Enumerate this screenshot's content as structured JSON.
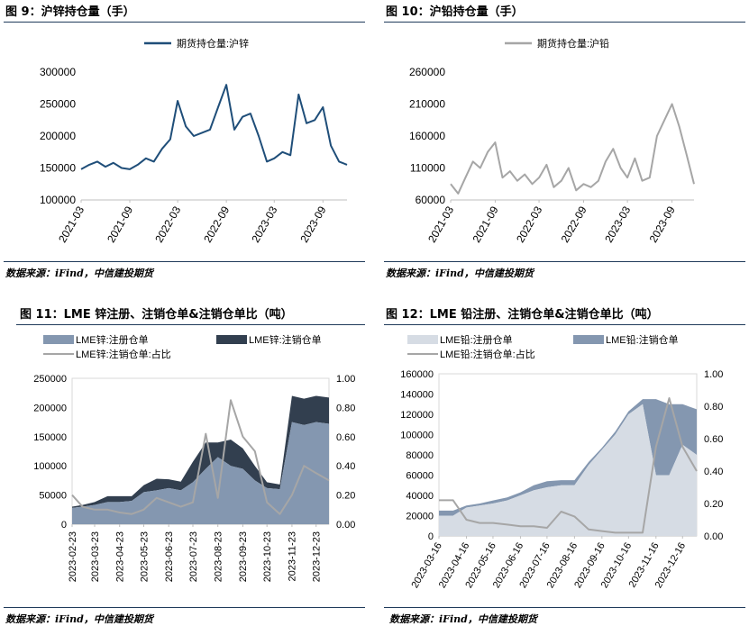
{
  "sources": {
    "top_left": "数据来源：iFind，中信建投期货",
    "top_right": "数据来源：iFind，中信建投期货",
    "bottom_left": "数据来源：iFind，中信建投期货",
    "bottom_right": "数据来源：iFind，中信建投期货"
  },
  "chart_data": [
    {
      "id": "fig9",
      "type": "line",
      "title": "图 9：沪锌持仓量（手）",
      "xlabel": "",
      "ylabel": "",
      "ylim": [
        100000,
        300000
      ],
      "yticks": [
        "100000",
        "150000",
        "200000",
        "250000",
        "300000"
      ],
      "xticks": [
        "2021-03",
        "2021-09",
        "2022-03",
        "2022-09",
        "2023-03",
        "2023-09"
      ],
      "grid": false,
      "legend": "top",
      "series": [
        {
          "name": "期货持仓量:沪锌",
          "color": "#1f4e79",
          "x": [
            "2021-03",
            "2021-04",
            "2021-05",
            "2021-06",
            "2021-07",
            "2021-08",
            "2021-09",
            "2021-10",
            "2021-11",
            "2021-12",
            "2022-01",
            "2022-02",
            "2022-03",
            "2022-04",
            "2022-05",
            "2022-06",
            "2022-07",
            "2022-08",
            "2022-09",
            "2022-10",
            "2022-11",
            "2022-12",
            "2023-01",
            "2023-02",
            "2023-03",
            "2023-04",
            "2023-05",
            "2023-06",
            "2023-07",
            "2023-08",
            "2023-09",
            "2023-10",
            "2023-11",
            "2023-12"
          ],
          "values": [
            148000,
            155000,
            160000,
            152000,
            158000,
            150000,
            148000,
            155000,
            165000,
            160000,
            180000,
            195000,
            255000,
            215000,
            200000,
            205000,
            210000,
            245000,
            280000,
            210000,
            230000,
            235000,
            200000,
            160000,
            165000,
            175000,
            170000,
            265000,
            220000,
            225000,
            245000,
            185000,
            160000,
            155000
          ]
        }
      ]
    },
    {
      "id": "fig10",
      "type": "line",
      "title": "图 10：沪铅持仓量（手）",
      "xlabel": "",
      "ylabel": "",
      "ylim": [
        60000,
        260000
      ],
      "yticks": [
        "60000",
        "110000",
        "160000",
        "210000",
        "260000"
      ],
      "xticks": [
        "2021-03",
        "2021-09",
        "2022-03",
        "2022-09",
        "2023-03",
        "2023-09"
      ],
      "grid": false,
      "legend": "top",
      "series": [
        {
          "name": "期货持仓量:沪铅",
          "color": "#a6a6a6",
          "x": [
            "2021-03",
            "2021-04",
            "2021-05",
            "2021-06",
            "2021-07",
            "2021-08",
            "2021-09",
            "2021-10",
            "2021-11",
            "2021-12",
            "2022-01",
            "2022-02",
            "2022-03",
            "2022-04",
            "2022-05",
            "2022-06",
            "2022-07",
            "2022-08",
            "2022-09",
            "2022-10",
            "2022-11",
            "2022-12",
            "2023-01",
            "2023-02",
            "2023-03",
            "2023-04",
            "2023-05",
            "2023-06",
            "2023-07",
            "2023-08",
            "2023-09",
            "2023-10",
            "2023-11",
            "2023-12"
          ],
          "values": [
            85000,
            70000,
            95000,
            120000,
            110000,
            135000,
            150000,
            95000,
            105000,
            90000,
            100000,
            85000,
            95000,
            115000,
            80000,
            90000,
            110000,
            75000,
            85000,
            80000,
            90000,
            120000,
            140000,
            110000,
            95000,
            125000,
            90000,
            95000,
            160000,
            185000,
            210000,
            175000,
            130000,
            85000
          ]
        }
      ]
    },
    {
      "id": "fig11",
      "type": "area",
      "title": "图 11：LME 锌注册、注销仓单&注销仓单比（吨）",
      "xlabel": "",
      "ylabel": "",
      "ylim": [
        0,
        250000
      ],
      "y2lim": [
        0,
        1.0
      ],
      "yticks": [
        "0",
        "50000",
        "100000",
        "150000",
        "200000",
        "250000"
      ],
      "y2ticks": [
        "0.00",
        "0.20",
        "0.40",
        "0.60",
        "0.80",
        "1.00"
      ],
      "xticks": [
        "2023-02-23",
        "2023-03-23",
        "2023-04-23",
        "2023-05-23",
        "2023-06-23",
        "2023-07-23",
        "2023-08-23",
        "2023-09-23",
        "2023-10-23",
        "2023-11-23",
        "2023-12-23"
      ],
      "grid": false,
      "legend": "top",
      "x": [
        "2023-02-23",
        "2023-03-08",
        "2023-03-23",
        "2023-04-08",
        "2023-04-23",
        "2023-05-08",
        "2023-05-23",
        "2023-06-08",
        "2023-06-23",
        "2023-07-08",
        "2023-07-23",
        "2023-08-08",
        "2023-08-23",
        "2023-09-08",
        "2023-09-23",
        "2023-10-08",
        "2023-10-23",
        "2023-11-08",
        "2023-11-23",
        "2023-12-08",
        "2023-12-23",
        "2024-01-08"
      ],
      "series": [
        {
          "name": "LME锌:注册仓单",
          "color": "#8497b0",
          "axis": "left",
          "values": [
            28000,
            30000,
            33000,
            38000,
            38000,
            40000,
            55000,
            58000,
            62000,
            58000,
            72000,
            95000,
            115000,
            100000,
            95000,
            75000,
            62000,
            60000,
            175000,
            170000,
            175000,
            172000
          ]
        },
        {
          "name": "LME锌:注销仓单",
          "color": "#323f4f",
          "axis": "left",
          "values": [
            2000,
            3000,
            5000,
            10000,
            10000,
            8000,
            12000,
            20000,
            15000,
            15000,
            35000,
            45000,
            25000,
            45000,
            35000,
            25000,
            10000,
            8000,
            45000,
            45000,
            45000,
            45000
          ]
        },
        {
          "name": "LME锌:注销仓单:占比",
          "color": "#a6a6a6",
          "axis": "right",
          "values": [
            0.2,
            0.12,
            0.1,
            0.1,
            0.08,
            0.07,
            0.1,
            0.18,
            0.15,
            0.12,
            0.15,
            0.62,
            0.18,
            0.85,
            0.6,
            0.5,
            0.15,
            0.07,
            0.2,
            0.4,
            0.35,
            0.3
          ]
        }
      ]
    },
    {
      "id": "fig12",
      "type": "area",
      "title": "图 12：LME 铅注册、注销仓单&注销仓单比（吨）",
      "xlabel": "",
      "ylabel": "",
      "ylim": [
        0,
        160000
      ],
      "y2lim": [
        0,
        1.0
      ],
      "yticks": [
        "0",
        "20000",
        "40000",
        "60000",
        "80000",
        "100000",
        "120000",
        "140000",
        "160000"
      ],
      "y2ticks": [
        "0.00",
        "0.20",
        "0.40",
        "0.60",
        "0.80",
        "1.00"
      ],
      "xticks": [
        "2023-03-16",
        "2023-04-16",
        "2023-05-16",
        "2023-06-16",
        "2023-07-16",
        "2023-08-16",
        "2023-09-16",
        "2023-10-16",
        "2023-11-16",
        "2023-12-16"
      ],
      "grid": false,
      "legend": "top",
      "x": [
        "2023-03-16",
        "2023-04-01",
        "2023-04-16",
        "2023-05-01",
        "2023-05-16",
        "2023-06-01",
        "2023-06-16",
        "2023-07-01",
        "2023-07-16",
        "2023-08-01",
        "2023-08-16",
        "2023-09-01",
        "2023-09-16",
        "2023-10-01",
        "2023-10-16",
        "2023-11-01",
        "2023-11-16",
        "2023-12-01",
        "2023-12-16",
        "2024-01-01"
      ],
      "series": [
        {
          "name": "LME铅:注册仓单",
          "color": "#d6dce4",
          "axis": "left",
          "values": [
            20000,
            20000,
            28000,
            30000,
            32000,
            35000,
            40000,
            45000,
            48000,
            50000,
            50000,
            70000,
            85000,
            100000,
            120000,
            130000,
            60000,
            60000,
            90000,
            80000
          ]
        },
        {
          "name": "LME铅:注销仓单",
          "color": "#8497b0",
          "axis": "left",
          "values": [
            5000,
            5000,
            2000,
            2000,
            3000,
            3000,
            3000,
            5000,
            6000,
            5000,
            5000,
            3000,
            2000,
            3000,
            3000,
            5000,
            75000,
            70000,
            40000,
            45000
          ]
        },
        {
          "name": "LME铅:注销仓单:占比",
          "color": "#a6a6a6",
          "axis": "right",
          "values": [
            0.22,
            0.22,
            0.1,
            0.08,
            0.08,
            0.07,
            0.06,
            0.06,
            0.05,
            0.15,
            0.12,
            0.04,
            0.03,
            0.02,
            0.02,
            0.02,
            0.55,
            0.85,
            0.55,
            0.4
          ]
        }
      ]
    }
  ]
}
